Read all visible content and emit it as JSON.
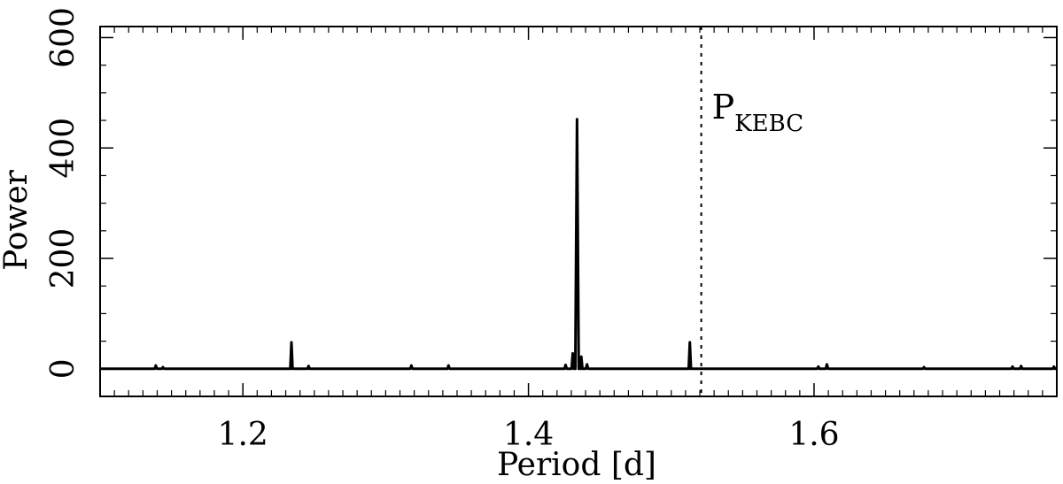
{
  "chart_data": {
    "type": "line",
    "title": "",
    "xlabel": "Period [d]",
    "ylabel": "Power",
    "xlim": [
      1.1,
      1.77
    ],
    "ylim": [
      -50,
      620
    ],
    "xticks": [
      1.2,
      1.4,
      1.6
    ],
    "xtick_labels": [
      "1.2",
      "1.4",
      "1.6"
    ],
    "yticks": [
      0,
      200,
      400,
      600
    ],
    "ytick_labels": [
      "0",
      "200",
      "400",
      "600"
    ],
    "grid": false,
    "legend": "none",
    "line_color": "#000000",
    "peaks": [
      {
        "period": 1.139,
        "power": 6
      },
      {
        "period": 1.144,
        "power": 3
      },
      {
        "period": 1.234,
        "power": 48
      },
      {
        "period": 1.246,
        "power": 5
      },
      {
        "period": 1.318,
        "power": 6
      },
      {
        "period": 1.344,
        "power": 6
      },
      {
        "period": 1.426,
        "power": 7
      },
      {
        "period": 1.431,
        "power": 28
      },
      {
        "period": 1.434,
        "power": 452
      },
      {
        "period": 1.437,
        "power": 22
      },
      {
        "period": 1.441,
        "power": 8
      },
      {
        "period": 1.513,
        "power": 48
      },
      {
        "period": 1.603,
        "power": 4
      },
      {
        "period": 1.609,
        "power": 8
      },
      {
        "period": 1.677,
        "power": 3
      },
      {
        "period": 1.739,
        "power": 4
      },
      {
        "period": 1.745,
        "power": 5
      },
      {
        "period": 1.768,
        "power": 4
      }
    ],
    "annotations": [
      {
        "type": "vline",
        "x": 1.521,
        "style": "dotted",
        "label_main": "P",
        "label_sub": "KEBC"
      }
    ]
  }
}
